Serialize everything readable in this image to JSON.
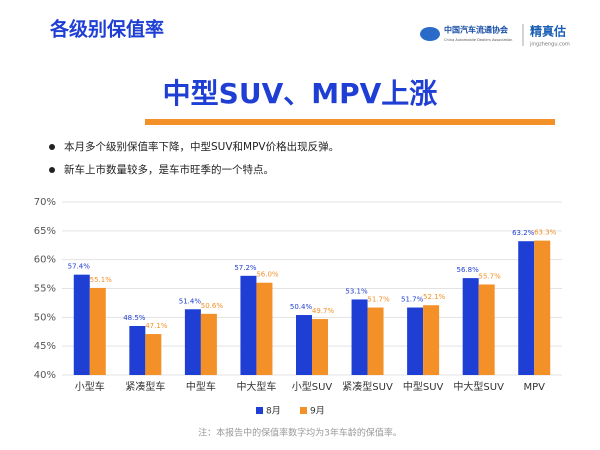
{
  "header": {
    "title": "各级别保值率",
    "logo_name": "中国汽车流通协会",
    "logo_sub": "China Automobile Dealers Association",
    "brand": "精真估",
    "brand_url": "jingzhengu.com"
  },
  "heading": "中型SUV、MPV上涨",
  "bullets": [
    "本月多个级别保值率下降，中型SUV和MPV价格出现反弹。",
    "新车上市数量较多，是车市旺季的一个特点。"
  ],
  "note": "注：本报告中的保值率数字均为3年车龄的保值率。",
  "chart_data": {
    "type": "bar",
    "categories": [
      "小型车",
      "紧凑型车",
      "中型车",
      "中大型车",
      "小型SUV",
      "紧凑型SUV",
      "中型SUV",
      "中大型SUV",
      "MPV"
    ],
    "series": [
      {
        "name": "8月",
        "color": "#1f3fd4",
        "values": [
          57.4,
          48.5,
          51.4,
          57.2,
          50.4,
          53.1,
          51.7,
          56.8,
          63.2
        ],
        "value_labels": [
          "57.4%",
          "48.5%",
          "51.4%",
          "57.2%",
          "50.4%",
          "53.1%",
          "51.7%",
          "56.8%",
          "63.2%"
        ]
      },
      {
        "name": "9月",
        "color": "#f39028",
        "values": [
          55.1,
          47.1,
          50.6,
          56.0,
          49.7,
          51.7,
          52.1,
          55.7,
          63.3
        ],
        "value_labels": [
          "55.1%",
          "47.1%",
          "50.6%",
          "56.0%",
          "49.7%",
          "51.7%",
          "52.1%",
          "55.7%",
          "63.3%"
        ]
      }
    ],
    "ylim": [
      40,
      70
    ],
    "yticks": [
      {
        "value": 40,
        "label": "40%"
      },
      {
        "value": 45,
        "label": "45%"
      },
      {
        "value": 50,
        "label": "50%"
      },
      {
        "value": 55,
        "label": "55%"
      },
      {
        "value": 60,
        "label": "60%"
      },
      {
        "value": 65,
        "label": "65%"
      },
      {
        "value": 70,
        "label": "70%"
      }
    ],
    "grid": true,
    "legend": "bottom"
  }
}
